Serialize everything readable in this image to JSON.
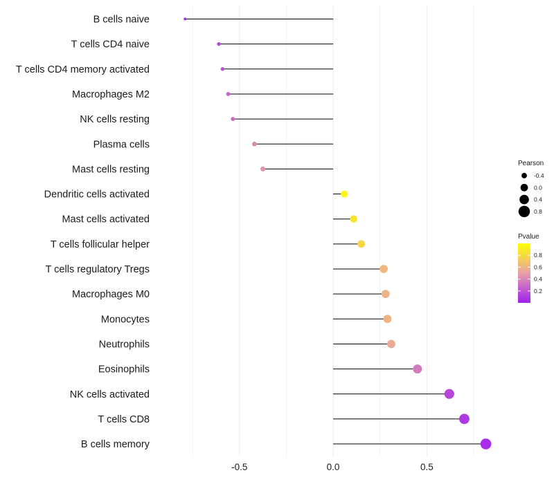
{
  "chart_data": {
    "type": "lollipop",
    "orientation": "horizontal",
    "categories": [
      "B cells naive",
      "T cells CD4 naive",
      "T cells CD4 memory activated",
      "Macrophages M2",
      "NK cells resting",
      "Plasma cells",
      "Mast cells resting",
      "Dendritic cells activated",
      "Mast cells activated",
      "T cells follicular helper",
      "T cells regulatory  Tregs ",
      "Macrophages M0",
      "Monocytes",
      "Neutrophils",
      "Eosinophils",
      "NK cells activated",
      "T cells CD8",
      "B cells memory"
    ],
    "pearson": [
      -0.79,
      -0.61,
      -0.59,
      -0.56,
      -0.535,
      -0.42,
      -0.375,
      0.06,
      0.11,
      0.15,
      0.27,
      0.28,
      0.29,
      0.31,
      0.45,
      0.62,
      0.7,
      0.815
    ],
    "pvalue": [
      0.05,
      0.15,
      0.2,
      0.25,
      0.3,
      0.4,
      0.45,
      0.95,
      0.85,
      0.78,
      0.62,
      0.6,
      0.6,
      0.55,
      0.35,
      0.15,
      0.1,
      0.05
    ],
    "xlim": [
      -0.95,
      0.92
    ],
    "xticks": [
      -0.5,
      0.0,
      0.5
    ],
    "xtick_labels": [
      "-0.5",
      "0.0",
      "0.5"
    ],
    "title": "",
    "xlabel": "",
    "ylabel": "",
    "grid": true,
    "legend": {
      "placement": "right",
      "size_title": "Pearson",
      "size_values": [
        -0.4,
        0.0,
        0.4,
        0.8
      ],
      "size_labels": [
        "-0.4",
        "0.0",
        "0.4",
        "0.8"
      ],
      "color_title": "Pvalue",
      "color_ticks": [
        0.2,
        0.4,
        0.6,
        0.8
      ],
      "color_tick_labels": [
        "0.2",
        "0.4",
        "0.6",
        "0.8"
      ],
      "color_range": [
        0.0,
        1.0
      ]
    },
    "colors": {
      "low": "#a020f0",
      "mid": "#e8a0a8",
      "high": "#ffff00",
      "stick": "#000000",
      "grid": "#ebebeb"
    }
  }
}
